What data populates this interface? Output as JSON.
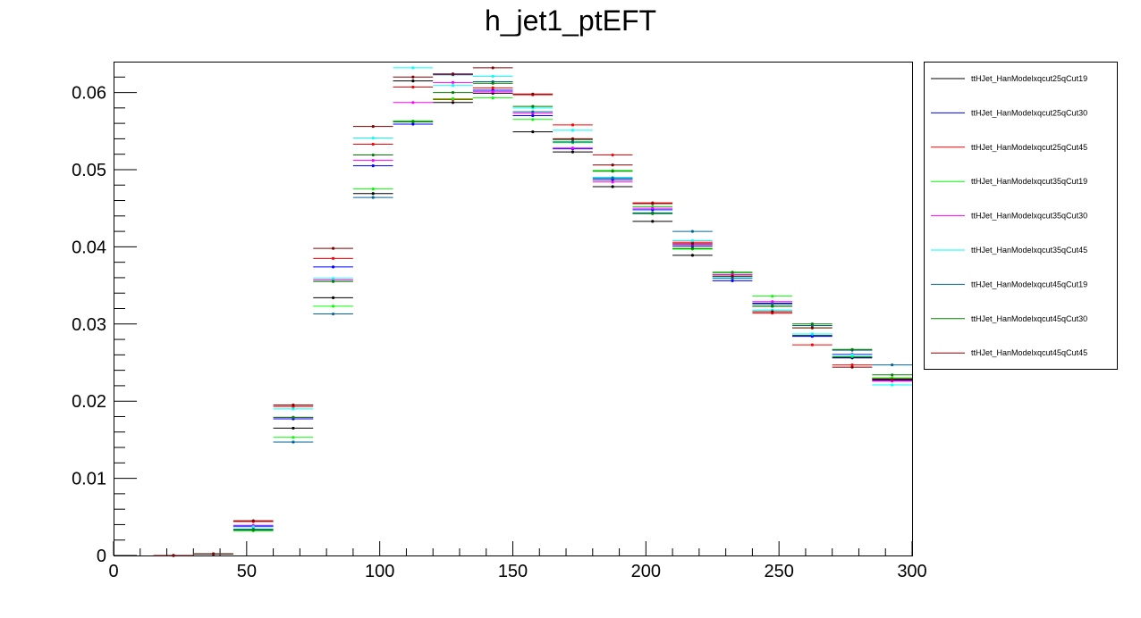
{
  "chart_data": {
    "type": "scatter",
    "title": "h_jet1_ptEFT",
    "xlabel": "",
    "ylabel": "",
    "xlim": [
      0,
      300
    ],
    "ylim": [
      0,
      0.064
    ],
    "bin_width": 15,
    "x": [
      22.5,
      37.5,
      52.5,
      67.5,
      82.5,
      97.5,
      112.5,
      127.5,
      142.5,
      157.5,
      172.5,
      187.5,
      202.5,
      217.5,
      232.5,
      247.5,
      262.5,
      277.5,
      292.5
    ],
    "x_ticks": [
      "0",
      "50",
      "100",
      "150",
      "200",
      "250",
      "300"
    ],
    "x_tick_values": [
      0,
      50,
      100,
      150,
      200,
      250,
      300
    ],
    "y_ticks": [
      "0",
      "0.01",
      "0.02",
      "0.03",
      "0.04",
      "0.05",
      "0.06"
    ],
    "y_tick_values": [
      0,
      0.01,
      0.02,
      0.03,
      0.04,
      0.05,
      0.06
    ],
    "grid": false,
    "legend_position": "right",
    "series": [
      {
        "name": "ttHJet_HanModelxqcut25qCut19",
        "color": "#000000",
        "values": [
          0.0,
          0.0002,
          0.0037,
          0.0165,
          0.0334,
          0.0469,
          0.0615,
          0.0587,
          0.0599,
          0.0549,
          0.0523,
          0.0478,
          0.0433,
          0.0389,
          0.0362,
          0.0323,
          0.0285,
          0.0256,
          0.0229
        ]
      },
      {
        "name": "ttHJet_HanModelxqcut25qCut30",
        "color": "#0000ff",
        "values": [
          0.0,
          0.0002,
          0.0038,
          0.0177,
          0.0374,
          0.0505,
          0.0559,
          0.0624,
          0.0603,
          0.057,
          0.0527,
          0.0487,
          0.0448,
          0.0401,
          0.0356,
          0.0327,
          0.0284,
          0.0257,
          0.0227
        ]
      },
      {
        "name": "ttHJet_HanModelxqcut25qCut45",
        "color": "#ff0000",
        "values": [
          0.0,
          0.0002,
          0.0044,
          0.0193,
          0.0385,
          0.0533,
          0.0607,
          0.0591,
          0.0606,
          0.0597,
          0.0558,
          0.0519,
          0.0457,
          0.0406,
          0.0364,
          0.0314,
          0.0273,
          0.0247,
          0.023
        ]
      },
      {
        "name": "ttHJet_HanModelxqcut35qCut19",
        "color": "#00ff00",
        "values": [
          0.0,
          0.0002,
          0.0032,
          0.0153,
          0.0323,
          0.0475,
          0.0563,
          0.0592,
          0.0593,
          0.0565,
          0.0535,
          0.0499,
          0.0452,
          0.0397,
          0.0366,
          0.0336,
          0.0295,
          0.0258,
          0.023
        ]
      },
      {
        "name": "ttHJet_HanModelxqcut35qCut30",
        "color": "#ff00ff",
        "values": [
          0.0,
          0.0002,
          0.0039,
          0.0179,
          0.0357,
          0.0512,
          0.0587,
          0.0613,
          0.0601,
          0.0573,
          0.0528,
          0.0484,
          0.045,
          0.0403,
          0.0364,
          0.0329,
          0.0287,
          0.0261,
          0.0226
        ]
      },
      {
        "name": "ttHJet_HanModelxqcut35qCut45",
        "color": "#00ffff",
        "values": [
          0.0,
          0.0002,
          0.0037,
          0.019,
          0.0359,
          0.0541,
          0.0632,
          0.0609,
          0.0621,
          0.058,
          0.0551,
          0.049,
          0.0444,
          0.0408,
          0.0361,
          0.0318,
          0.0287,
          0.026,
          0.0221
        ]
      },
      {
        "name": "ttHJet_HanModelxqcut45qCut19",
        "color": "#006699",
        "values": [
          0.0,
          0.0002,
          0.0034,
          0.0147,
          0.0313,
          0.0464,
          0.0562,
          0.0623,
          0.0614,
          0.0575,
          0.0536,
          0.0489,
          0.0444,
          0.042,
          0.0359,
          0.0326,
          0.0298,
          0.0266,
          0.0247
        ]
      },
      {
        "name": "ttHJet_HanModelxqcut45qCut30",
        "color": "#008000",
        "values": [
          0.0,
          0.0002,
          0.0033,
          0.0179,
          0.0355,
          0.0519,
          0.0562,
          0.06,
          0.0612,
          0.0582,
          0.0539,
          0.0498,
          0.0443,
          0.0398,
          0.0367,
          0.0323,
          0.03,
          0.0267,
          0.0234
        ]
      },
      {
        "name": "ttHJet_HanModelxqcut45qCut45",
        "color": "#800000",
        "values": [
          0.0,
          0.0002,
          0.0045,
          0.0195,
          0.0398,
          0.0556,
          0.062,
          0.0624,
          0.0632,
          0.0598,
          0.054,
          0.0506,
          0.0456,
          0.0404,
          0.0362,
          0.0316,
          0.0295,
          0.0244,
          0.0228
        ]
      }
    ]
  }
}
